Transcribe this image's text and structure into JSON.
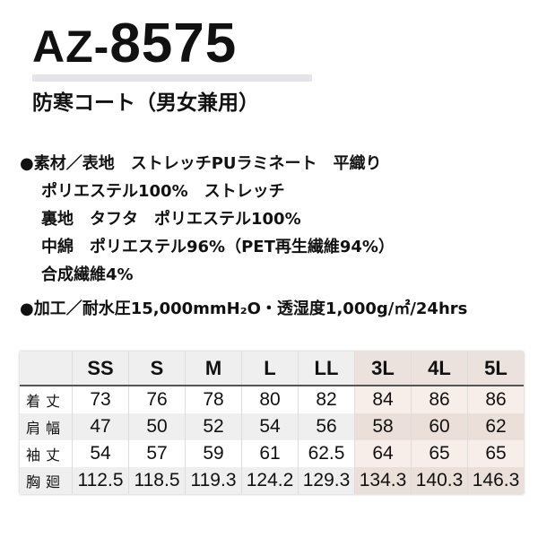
{
  "product": {
    "code_prefix": "AZ-",
    "code_number": "8575",
    "title": "防寒コート（男女兼用）"
  },
  "specs": [
    "●素材／表地　ストレッチPUラミネート　平織り",
    "ポリエステル100%　ストレッチ",
    "裏地　タフタ　ポリエステル100%",
    "中綿　ポリエステル96%（PET再生繊維94%）",
    "合成繊維4%",
    "●加工／耐水圧15,000mmH₂O・透湿度1,000g/㎡/24hrs"
  ],
  "size_table": {
    "columns": [
      "SS",
      "S",
      "M",
      "L",
      "LL",
      "3L",
      "4L",
      "5L"
    ],
    "rows": [
      {
        "label": "着丈",
        "values": [
          "73",
          "76",
          "78",
          "80",
          "82",
          "84",
          "86",
          "86"
        ]
      },
      {
        "label": "肩幅",
        "values": [
          "47",
          "50",
          "52",
          "54",
          "56",
          "58",
          "60",
          "62"
        ]
      },
      {
        "label": "袖丈",
        "values": [
          "54",
          "57",
          "59",
          "61",
          "62.5",
          "64",
          "65",
          "65"
        ]
      },
      {
        "label": "胸廻",
        "values": [
          "112.5",
          "118.5",
          "119.3",
          "124.2",
          "129.3",
          "134.3",
          "140.3",
          "146.3"
        ]
      }
    ]
  },
  "colors": {
    "large_size_highlight": "#f6ece8",
    "header_bg": "#efefef"
  }
}
